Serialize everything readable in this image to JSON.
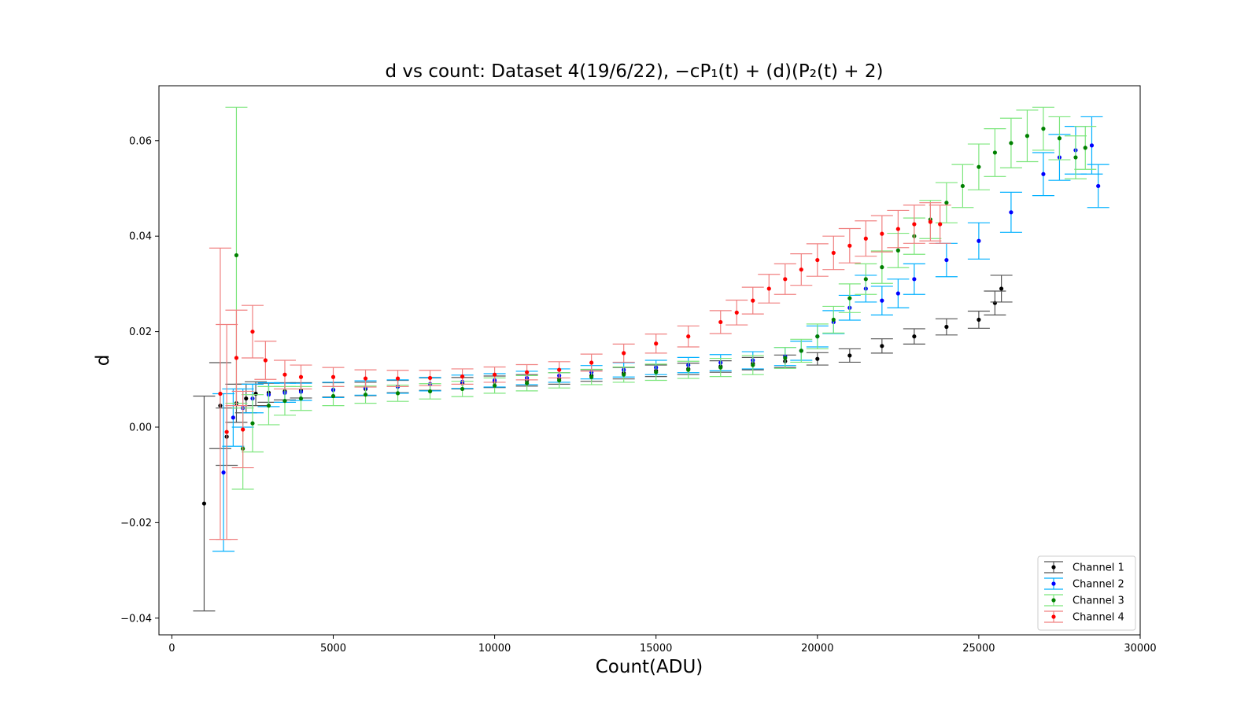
{
  "chart_data": {
    "type": "scatter",
    "title": "d vs count: Dataset 4(19/6/22),  −cP₁(t) + (d)(P₂(t) + 2)",
    "xlabel": "Count(ADU)",
    "ylabel": "d",
    "xlim": [
      -400,
      30000
    ],
    "ylim": [
      -0.0435,
      0.0715
    ],
    "xticks": [
      0,
      5000,
      10000,
      15000,
      20000,
      25000,
      30000
    ],
    "xtick_labels": [
      "0",
      "5000",
      "10000",
      "15000",
      "20000",
      "25000",
      "30000"
    ],
    "yticks": [
      -0.04,
      -0.02,
      0.0,
      0.02,
      0.04,
      0.06
    ],
    "ytick_labels": [
      "−0.04",
      "−0.02",
      "0.00",
      "0.02",
      "0.04",
      "0.06"
    ],
    "grid": false,
    "legend_position": "lower-right",
    "error_bar_capsize": "wide",
    "series": [
      {
        "name": "Channel 1",
        "marker_color": "#000000",
        "error_color": "#555555",
        "x": [
          1000,
          1500,
          1700,
          2000,
          2300,
          2600,
          3000,
          3500,
          4000,
          5000,
          6000,
          7000,
          8000,
          9000,
          10000,
          11000,
          12000,
          13000,
          14000,
          15000,
          16000,
          17000,
          18000,
          19000,
          20000,
          21000,
          22000,
          23000,
          24000,
          25000,
          25500,
          25700
        ],
        "y": [
          -0.016,
          0.0045,
          -0.002,
          0.005,
          0.006,
          0.007,
          0.0072,
          0.0075,
          0.0077,
          0.0078,
          0.008,
          0.0085,
          0.009,
          0.0092,
          0.0095,
          0.0098,
          0.0102,
          0.0108,
          0.0113,
          0.0118,
          0.0122,
          0.0127,
          0.0133,
          0.0138,
          0.0143,
          0.015,
          0.017,
          0.019,
          0.021,
          0.0225,
          0.026,
          0.029
        ],
        "err": [
          0.0225,
          0.009,
          0.006,
          0.004,
          0.003,
          0.0025,
          0.002,
          0.0018,
          0.0016,
          0.0015,
          0.0014,
          0.0013,
          0.0013,
          0.0012,
          0.0012,
          0.0012,
          0.0012,
          0.0012,
          0.0012,
          0.0012,
          0.0012,
          0.0012,
          0.0013,
          0.0013,
          0.0013,
          0.0014,
          0.0015,
          0.0016,
          0.0017,
          0.0018,
          0.0025,
          0.0028
        ]
      },
      {
        "name": "Channel 2",
        "marker_color": "#0000ff",
        "error_color": "#00b0ff",
        "x": [
          1600,
          1900,
          2200,
          2500,
          3000,
          3500,
          4000,
          5000,
          6000,
          7000,
          8000,
          9000,
          10000,
          11000,
          12000,
          13000,
          14000,
          15000,
          16000,
          17000,
          18000,
          19000,
          19500,
          20000,
          20500,
          21000,
          21500,
          22000,
          22500,
          23000,
          24000,
          25000,
          26000,
          27000,
          27500,
          28000,
          28500,
          28700
        ],
        "y": [
          -0.0095,
          0.002,
          0.004,
          0.006,
          0.0068,
          0.0072,
          0.0074,
          0.0078,
          0.0082,
          0.0085,
          0.009,
          0.0095,
          0.0098,
          0.0103,
          0.0108,
          0.0115,
          0.012,
          0.0125,
          0.013,
          0.0135,
          0.014,
          0.0148,
          0.016,
          0.019,
          0.022,
          0.025,
          0.029,
          0.0265,
          0.028,
          0.031,
          0.035,
          0.039,
          0.045,
          0.053,
          0.0565,
          0.058,
          0.059,
          0.0505
        ],
        "err": [
          0.0165,
          0.006,
          0.004,
          0.003,
          0.0025,
          0.002,
          0.0018,
          0.0016,
          0.0015,
          0.0014,
          0.0014,
          0.0014,
          0.0014,
          0.0014,
          0.0014,
          0.0014,
          0.0015,
          0.0015,
          0.0016,
          0.0017,
          0.0018,
          0.0019,
          0.002,
          0.0022,
          0.0024,
          0.0026,
          0.0028,
          0.003,
          0.003,
          0.0032,
          0.0035,
          0.0038,
          0.0042,
          0.0045,
          0.0048,
          0.005,
          0.006,
          0.0045
        ]
      },
      {
        "name": "Channel 3",
        "marker_color": "#008000",
        "error_color": "#7ce67c",
        "x": [
          2000,
          2200,
          2500,
          3000,
          3500,
          4000,
          5000,
          6000,
          7000,
          8000,
          9000,
          10000,
          11000,
          12000,
          13000,
          14000,
          15000,
          16000,
          17000,
          18000,
          19000,
          19500,
          20000,
          20500,
          21000,
          21500,
          22000,
          22500,
          23000,
          23500,
          24000,
          24500,
          25000,
          25500,
          26000,
          26500,
          27000,
          27500,
          28000,
          28300
        ],
        "y": [
          0.036,
          -0.0045,
          0.0008,
          0.0045,
          0.0055,
          0.006,
          0.0065,
          0.0068,
          0.0071,
          0.0075,
          0.008,
          0.0087,
          0.0092,
          0.0098,
          0.0105,
          0.011,
          0.0115,
          0.012,
          0.0125,
          0.013,
          0.0145,
          0.016,
          0.019,
          0.0225,
          0.027,
          0.031,
          0.0335,
          0.037,
          0.04,
          0.0435,
          0.047,
          0.0505,
          0.0545,
          0.0575,
          0.0595,
          0.061,
          0.0625,
          0.0605,
          0.0565,
          0.0585
        ],
        "err": [
          0.031,
          0.0085,
          0.006,
          0.004,
          0.003,
          0.0025,
          0.002,
          0.0018,
          0.0017,
          0.0016,
          0.0016,
          0.0016,
          0.0016,
          0.0016,
          0.0016,
          0.0016,
          0.0017,
          0.0018,
          0.0019,
          0.002,
          0.0022,
          0.0024,
          0.0026,
          0.0028,
          0.003,
          0.0032,
          0.0034,
          0.0036,
          0.0038,
          0.004,
          0.0042,
          0.0045,
          0.0048,
          0.005,
          0.0052,
          0.0054,
          0.0045,
          0.0045,
          0.0045,
          0.0045
        ]
      },
      {
        "name": "Channel 4",
        "marker_color": "#ff0000",
        "error_color": "#f08080",
        "x": [
          1500,
          1700,
          2000,
          2200,
          2500,
          2900,
          3500,
          4000,
          5000,
          6000,
          7000,
          8000,
          9000,
          10000,
          11000,
          12000,
          13000,
          14000,
          15000,
          16000,
          17000,
          17500,
          18000,
          18500,
          19000,
          19500,
          20000,
          20500,
          21000,
          21500,
          22000,
          22500,
          23000,
          23500,
          23800
        ],
        "y": [
          0.007,
          -0.001,
          0.0145,
          -0.0005,
          0.02,
          0.014,
          0.011,
          0.0105,
          0.0105,
          0.0102,
          0.0102,
          0.0103,
          0.0106,
          0.011,
          0.0115,
          0.012,
          0.0135,
          0.0155,
          0.0175,
          0.019,
          0.022,
          0.024,
          0.0265,
          0.029,
          0.031,
          0.033,
          0.035,
          0.0365,
          0.038,
          0.0395,
          0.0405,
          0.0415,
          0.0425,
          0.043,
          0.0425
        ],
        "err": [
          0.0305,
          0.0225,
          0.01,
          0.008,
          0.0055,
          0.004,
          0.003,
          0.0025,
          0.002,
          0.0018,
          0.0017,
          0.0016,
          0.0016,
          0.0016,
          0.0016,
          0.0017,
          0.0018,
          0.0019,
          0.002,
          0.0022,
          0.0024,
          0.0026,
          0.0028,
          0.003,
          0.0032,
          0.0033,
          0.0034,
          0.0035,
          0.0036,
          0.0037,
          0.0038,
          0.0039,
          0.004,
          0.004,
          0.004
        ]
      }
    ]
  }
}
